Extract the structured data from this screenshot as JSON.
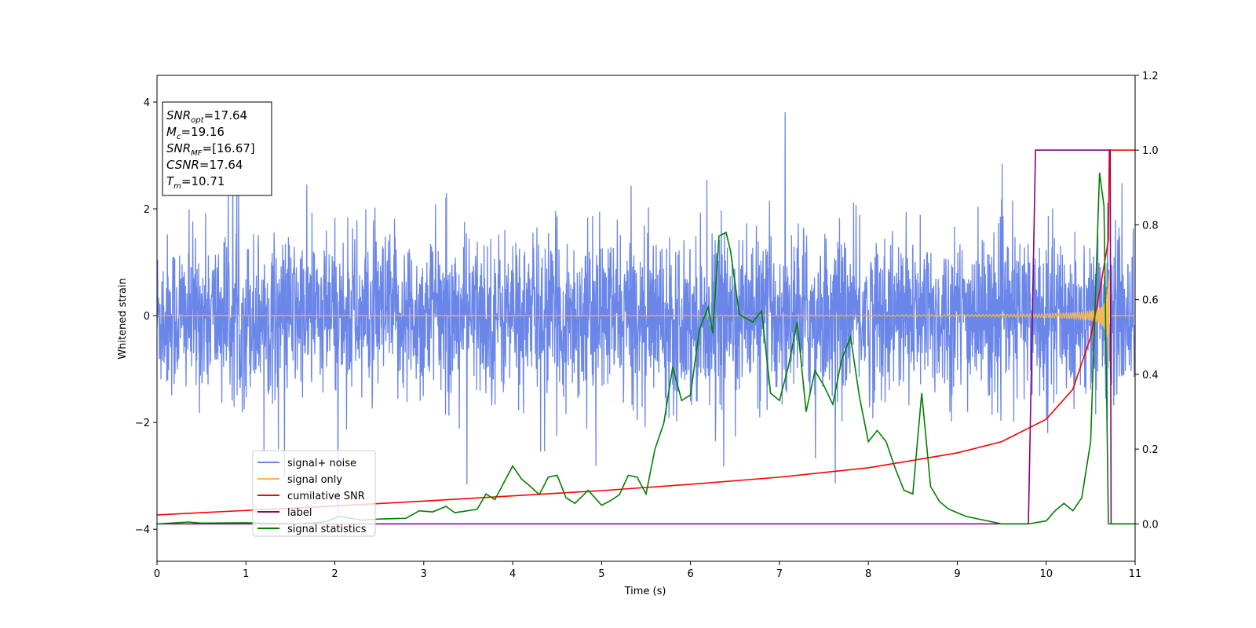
{
  "chart_data": {
    "type": "line",
    "title": "",
    "xlabel": "Time (s)",
    "ylabel": "Whitened strain",
    "xlim": [
      0,
      11
    ],
    "ylim_left": [
      -4.6,
      4.5
    ],
    "ylim_right": [
      -0.1,
      1.2
    ],
    "x_ticks": [
      "0",
      "1",
      "2",
      "3",
      "4",
      "5",
      "6",
      "7",
      "8",
      "9",
      "10",
      "11"
    ],
    "y_ticks_left": [
      "−4",
      "−2",
      "0",
      "2",
      "4"
    ],
    "y_ticks_right": [
      "0.0",
      "0.2",
      "0.4",
      "0.6",
      "0.8",
      "1.0",
      "1.2"
    ],
    "grid": false,
    "legend_position": "lower-left",
    "annotation": {
      "lines": [
        {
          "prefix": "SNR",
          "sub": "opt",
          "suffix": "=17.64"
        },
        {
          "prefix": "M",
          "sub": "c",
          "suffix": "=19.16"
        },
        {
          "prefix": "SNR",
          "sub": "MF",
          "suffix": "=[16.67]"
        },
        {
          "prefix": "CSNR",
          "sub": "",
          "suffix": "=17.64"
        },
        {
          "prefix": "T",
          "sub": "m",
          "suffix": "=10.71"
        }
      ]
    },
    "series": [
      {
        "name": "signal+ noise",
        "color": "#6a86e8",
        "axis": "left",
        "style": "noisy band, amplitude ~±2.3 with peaks to ±4",
        "noise_sigma": 0.75
      },
      {
        "name": "signal only",
        "color": "#f5b85a",
        "axis": "left",
        "style": "chirp growing to ~±4.1 and ending at t=10.71",
        "merger_time": 10.71
      },
      {
        "name": "cumilative SNR",
        "color": "#ff0000",
        "axis": "right",
        "x": [
          0,
          1,
          2,
          3,
          4,
          5,
          6,
          7,
          8,
          9,
          9.5,
          10,
          10.3,
          10.5,
          10.6,
          10.7,
          10.71,
          11
        ],
        "y": [
          0.024,
          0.036,
          0.048,
          0.061,
          0.075,
          0.089,
          0.106,
          0.125,
          0.15,
          0.19,
          0.22,
          0.28,
          0.36,
          0.5,
          0.62,
          0.76,
          1.0,
          1.0
        ]
      },
      {
        "name": "label",
        "color": "#800080",
        "axis": "right",
        "x": [
          0,
          9.8,
          9.88,
          10.72,
          10.73,
          11
        ],
        "y": [
          0,
          0,
          1.0,
          1.0,
          0,
          0
        ]
      },
      {
        "name": "signal statistics",
        "color": "#008000",
        "axis": "right",
        "x": [
          0,
          0.35,
          0.5,
          1.0,
          1.6,
          1.9,
          2.05,
          2.3,
          2.5,
          2.8,
          2.95,
          3.1,
          3.25,
          3.35,
          3.6,
          3.7,
          3.8,
          3.9,
          4.0,
          4.1,
          4.2,
          4.3,
          4.4,
          4.5,
          4.6,
          4.7,
          4.85,
          5.0,
          5.1,
          5.2,
          5.3,
          5.4,
          5.5,
          5.6,
          5.7,
          5.8,
          5.9,
          6.0,
          6.1,
          6.2,
          6.25,
          6.32,
          6.4,
          6.45,
          6.55,
          6.7,
          6.8,
          6.9,
          7.0,
          7.1,
          7.2,
          7.3,
          7.4,
          7.5,
          7.6,
          7.7,
          7.8,
          7.9,
          8.0,
          8.1,
          8.2,
          8.3,
          8.4,
          8.5,
          8.6,
          8.7,
          8.8,
          8.9,
          9.0,
          9.1,
          9.3,
          9.5,
          9.8,
          10.0,
          10.1,
          10.2,
          10.3,
          10.4,
          10.5,
          10.6,
          10.65,
          10.7,
          10.73,
          11
        ],
        "y": [
          0.0,
          0.005,
          0.002,
          0.003,
          0.0,
          0.006,
          0.02,
          0.01,
          0.013,
          0.015,
          0.035,
          0.032,
          0.047,
          0.03,
          0.039,
          0.08,
          0.065,
          0.11,
          0.155,
          0.12,
          0.1,
          0.078,
          0.125,
          0.13,
          0.07,
          0.055,
          0.09,
          0.05,
          0.062,
          0.078,
          0.13,
          0.125,
          0.08,
          0.2,
          0.27,
          0.42,
          0.33,
          0.345,
          0.52,
          0.58,
          0.51,
          0.77,
          0.78,
          0.73,
          0.56,
          0.54,
          0.57,
          0.35,
          0.33,
          0.42,
          0.54,
          0.3,
          0.41,
          0.37,
          0.32,
          0.44,
          0.5,
          0.34,
          0.22,
          0.25,
          0.22,
          0.15,
          0.09,
          0.08,
          0.35,
          0.1,
          0.06,
          0.04,
          0.03,
          0.02,
          0.01,
          0.0,
          0.0,
          0.008,
          0.035,
          0.055,
          0.035,
          0.07,
          0.22,
          0.94,
          0.85,
          0.0,
          0.0,
          0.0
        ]
      }
    ]
  }
}
